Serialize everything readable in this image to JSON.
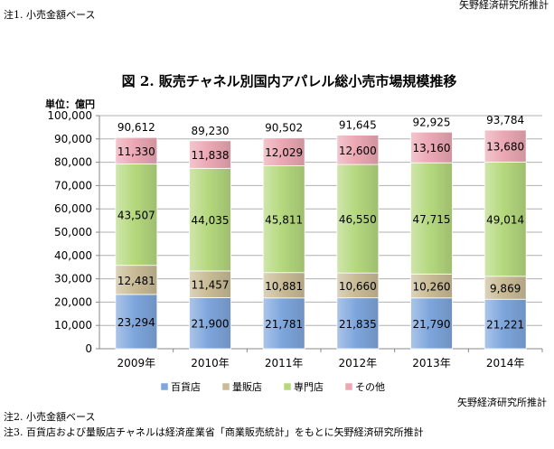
{
  "header": {
    "note1": "注1. 小売金額ベース",
    "source": "矢野経済研究所推計"
  },
  "footer": {
    "note2": "注2. 小売金額ベース",
    "note3": "注3. 百貨店および量販店チャネルは経済産業省「商業販売統計」をもとに矢野経済研究所推計",
    "source": "矢野経済研究所推計"
  },
  "chart_data": {
    "type": "bar",
    "stacked": true,
    "title": "図 2. 販売チャネル別国内アパレル総小売市場規模推移",
    "unit_label": "単位：億円",
    "categories": [
      "2009年",
      "2010年",
      "2011年",
      "2012年",
      "2013年",
      "2014年"
    ],
    "ylim": [
      0,
      100000
    ],
    "yticks": [
      0,
      10000,
      20000,
      30000,
      40000,
      50000,
      60000,
      70000,
      80000,
      90000,
      100000
    ],
    "ytick_labels": [
      "0",
      "10,000",
      "20,000",
      "30,000",
      "40,000",
      "50,000",
      "60,000",
      "70,000",
      "80,000",
      "90,000",
      "100,000"
    ],
    "grid": true,
    "legend_position": "bottom",
    "series": [
      {
        "name": "百貨店",
        "color": "#7ea6dc",
        "values": [
          23294,
          21900,
          21781,
          21835,
          21790,
          21221
        ],
        "labels": [
          "23,294",
          "21,900",
          "21,781",
          "21,835",
          "21,790",
          "21,221"
        ]
      },
      {
        "name": "量販店",
        "color": "#c9bb96",
        "values": [
          12481,
          11457,
          10881,
          10660,
          10260,
          9869
        ],
        "labels": [
          "12,481",
          "11,457",
          "10,881",
          "10,660",
          "10,260",
          "9,869"
        ]
      },
      {
        "name": "専門店",
        "color": "#b5d87e",
        "values": [
          43507,
          44035,
          45811,
          46550,
          47715,
          49014
        ],
        "labels": [
          "43,507",
          "44,035",
          "45,811",
          "46,550",
          "47,715",
          "49,014"
        ]
      },
      {
        "name": "その他",
        "color": "#eba8b4",
        "values": [
          11330,
          11838,
          12029,
          12600,
          13160,
          13680
        ],
        "labels": [
          "11,330",
          "11,838",
          "12,029",
          "12,600",
          "13,160",
          "13,680"
        ]
      }
    ],
    "totals": [
      90612,
      89230,
      90502,
      91645,
      92925,
      93784
    ],
    "total_labels": [
      "90,612",
      "89,230",
      "90,502",
      "91,645",
      "92,925",
      "93,784"
    ]
  }
}
